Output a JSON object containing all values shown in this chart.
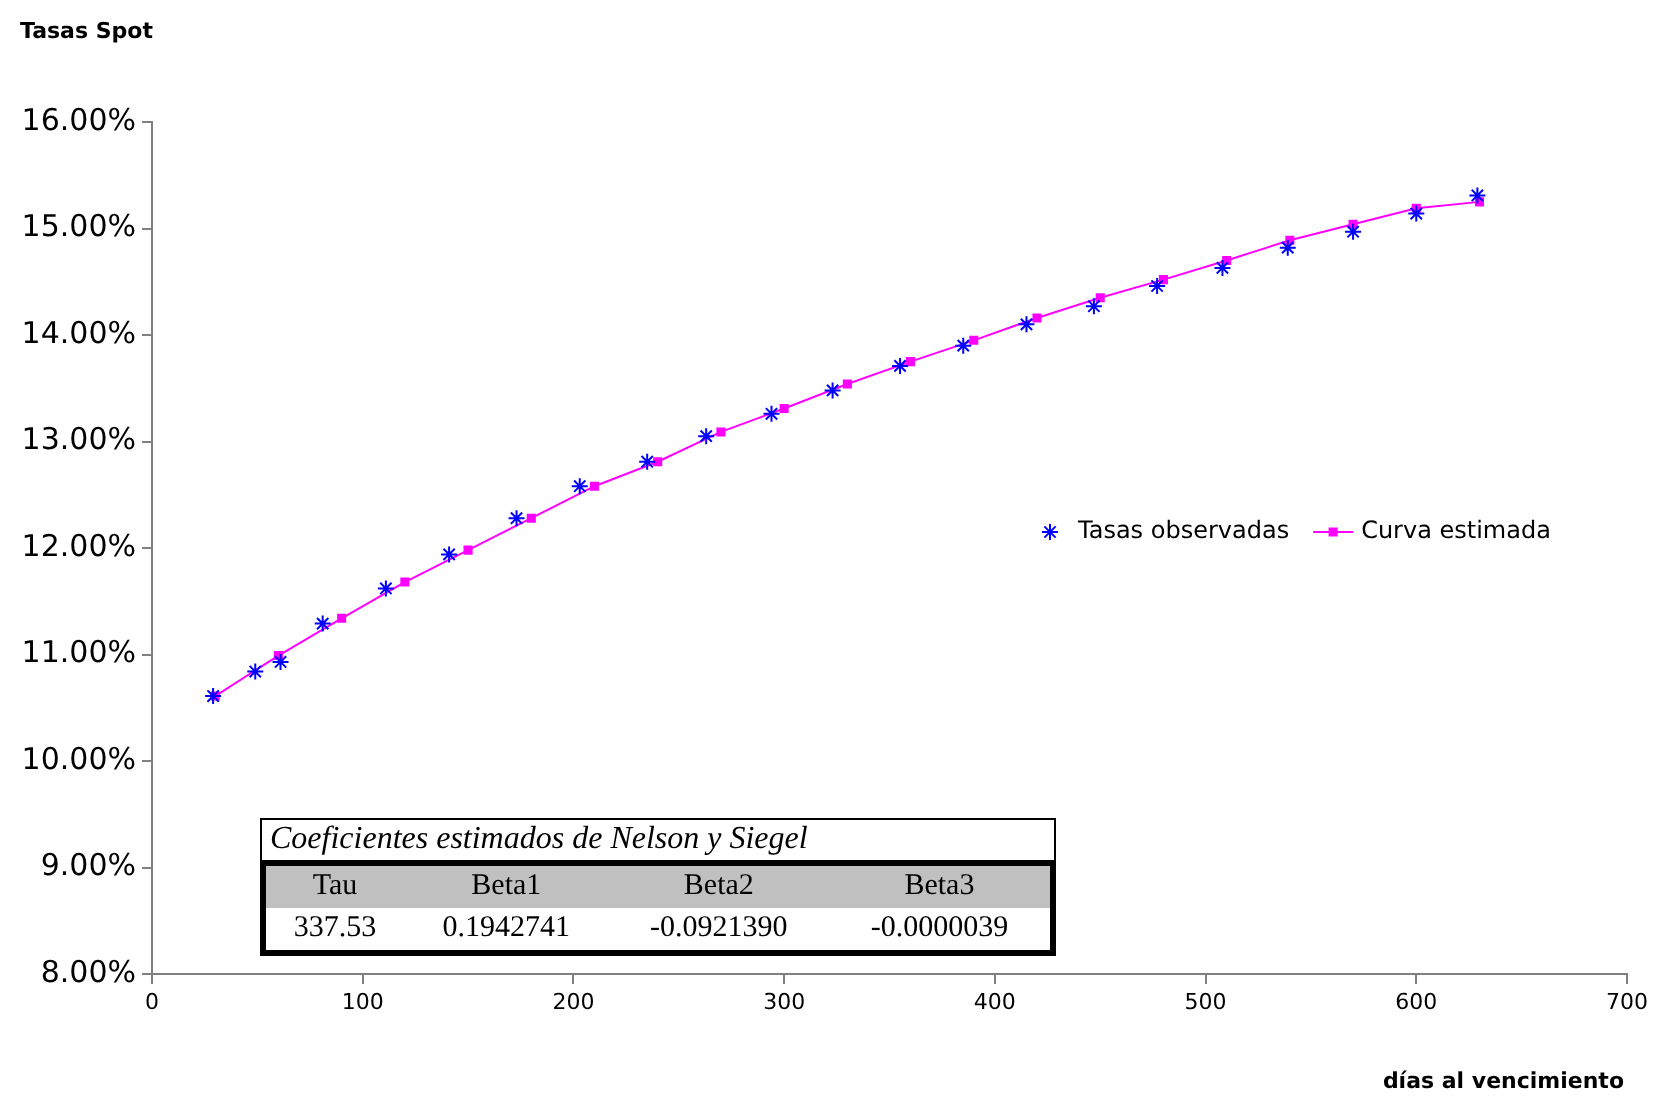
{
  "chart_data": {
    "type": "line",
    "ylabel": "Tasas Spot",
    "xlabel": "días al vencimiento",
    "xlim": [
      0,
      700
    ],
    "xticks": [
      0,
      100,
      200,
      300,
      400,
      500,
      600,
      700
    ],
    "ylim": [
      8,
      16
    ],
    "yticks": [
      {
        "value": 8,
        "label": "8.00%"
      },
      {
        "value": 9,
        "label": "9.00%"
      },
      {
        "value": 10,
        "label": "10.00%"
      },
      {
        "value": 11,
        "label": "11.00%"
      },
      {
        "value": 12,
        "label": "12.00%"
      },
      {
        "value": 13,
        "label": "13.00%"
      },
      {
        "value": 14,
        "label": "14.00%"
      },
      {
        "value": 15,
        "label": "15.00%"
      },
      {
        "value": 16,
        "label": "16.00%"
      }
    ],
    "grid": false,
    "legend": "right",
    "series": [
      {
        "name": "Tasas observadas",
        "type": "scatter",
        "marker": "cross",
        "color": "#0000ff",
        "x": [
          29,
          49,
          61,
          81,
          111,
          141,
          173,
          203,
          235,
          263,
          294,
          323,
          355,
          385,
          415,
          447,
          477,
          508,
          539,
          570,
          600,
          629
        ],
        "values": [
          10.61,
          10.84,
          10.93,
          11.29,
          11.62,
          11.94,
          12.28,
          12.58,
          12.81,
          13.05,
          13.26,
          13.48,
          13.71,
          13.9,
          14.1,
          14.27,
          14.46,
          14.63,
          14.82,
          14.97,
          15.14,
          15.31
        ]
      },
      {
        "name": "Curva estimada",
        "marker": "square",
        "color": "#ff00ff",
        "x": [
          30,
          60,
          90,
          120,
          150,
          180,
          210,
          240,
          270,
          300,
          330,
          360,
          390,
          420,
          450,
          480,
          510,
          540,
          570,
          600,
          630
        ],
        "values": [
          10.61,
          10.99,
          11.34,
          11.68,
          11.98,
          12.28,
          12.58,
          12.81,
          13.09,
          13.31,
          13.54,
          13.75,
          13.95,
          14.16,
          14.35,
          14.52,
          14.7,
          14.89,
          15.04,
          15.19,
          15.25
        ]
      }
    ],
    "annotations": [
      "Coeficientes estimados de Nelson y Siegel",
      "Tau",
      "Beta1",
      "Beta2",
      "Beta3",
      "337.53",
      "0.1942741",
      "-0.0921390",
      "-0.0000039"
    ]
  }
}
